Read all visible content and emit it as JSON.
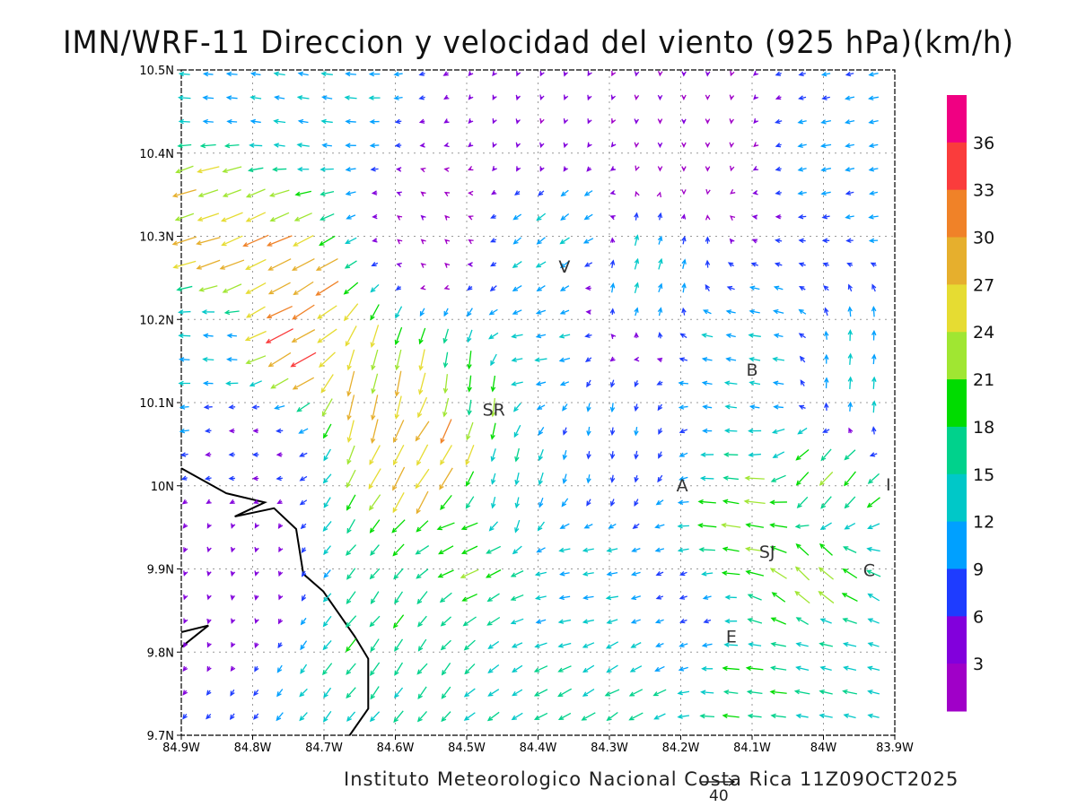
{
  "title": "IMN/WRF-11 Direccion y velocidad del viento (925 hPa)(km/h)",
  "credit": "Instituto Meteorologico Nacional Costa Rica 11Z09OCT2025",
  "reference_vector": {
    "label": "40",
    "speed": 40
  },
  "chart_data": {
    "type": "vector-field",
    "units": "km/h",
    "level": "925 hPa",
    "xlim": [
      -84.9,
      -83.9
    ],
    "ylim": [
      9.7,
      10.5
    ],
    "x_ticks": [
      {
        "v": -84.9,
        "label": "84.9W"
      },
      {
        "v": -84.8,
        "label": "84.8W"
      },
      {
        "v": -84.7,
        "label": "84.7W"
      },
      {
        "v": -84.6,
        "label": "84.6W"
      },
      {
        "v": -84.5,
        "label": "84.5W"
      },
      {
        "v": -84.4,
        "label": "84.4W"
      },
      {
        "v": -84.3,
        "label": "84.3W"
      },
      {
        "v": -84.2,
        "label": "84.2W"
      },
      {
        "v": -84.1,
        "label": "84.1W"
      },
      {
        "v": -84.0,
        "label": "84W"
      },
      {
        "v": -83.9,
        "label": "83.9W"
      }
    ],
    "y_ticks": [
      {
        "v": 9.7,
        "label": "9.7N"
      },
      {
        "v": 9.8,
        "label": "9.8N"
      },
      {
        "v": 9.9,
        "label": "9.9N"
      },
      {
        "v": 10.0,
        "label": "10N"
      },
      {
        "v": 10.1,
        "label": "10.1N"
      },
      {
        "v": 10.2,
        "label": "10.2N"
      },
      {
        "v": 10.3,
        "label": "10.3N"
      },
      {
        "v": 10.4,
        "label": "10.4N"
      },
      {
        "v": 10.5,
        "label": "10.5N"
      }
    ],
    "grid": true,
    "colorbar": {
      "placement": "right",
      "levels": [
        3,
        6,
        9,
        12,
        15,
        18,
        21,
        24,
        27,
        30,
        33,
        36
      ],
      "labels": [
        "3",
        "6",
        "9",
        "12",
        "15",
        "18",
        "21",
        "24",
        "27",
        "30",
        "33",
        "36"
      ],
      "colors": [
        "#a000c8",
        "#8200dc",
        "#1e3cff",
        "#00a0ff",
        "#00c8c8",
        "#00d28c",
        "#00dc00",
        "#a0e632",
        "#e6dc32",
        "#e6af2d",
        "#f08228",
        "#fa3c3c",
        "#f00082"
      ]
    },
    "grid_spacing_deg": [
      0.0333,
      0.0286
    ],
    "wind_anchors": [
      {
        "lon": -84.87,
        "lat": 10.47,
        "u": -12,
        "v": 1
      },
      {
        "lon": -84.75,
        "lat": 10.45,
        "u": -12,
        "v": 2
      },
      {
        "lon": -84.87,
        "lat": 10.33,
        "u": -24,
        "v": -8
      },
      {
        "lon": -84.8,
        "lat": 10.27,
        "u": -26,
        "v": -12
      },
      {
        "lon": -84.75,
        "lat": 10.18,
        "u": -28,
        "v": -16
      },
      {
        "lon": -84.85,
        "lat": 10.17,
        "u": -12,
        "v": 1
      },
      {
        "lon": -84.63,
        "lat": 10.12,
        "u": -6,
        "v": -26
      },
      {
        "lon": -84.55,
        "lat": 10.03,
        "u": -14,
        "v": -26
      },
      {
        "lon": -84.49,
        "lat": 10.12,
        "u": -2,
        "v": -20
      },
      {
        "lon": -84.55,
        "lat": 10.3,
        "u": -2,
        "v": 2
      },
      {
        "lon": -84.4,
        "lat": 10.42,
        "u": -1,
        "v": -3
      },
      {
        "lon": -84.2,
        "lat": 10.42,
        "u": 0,
        "v": -3
      },
      {
        "lon": -83.95,
        "lat": 10.4,
        "u": -10,
        "v": -2
      },
      {
        "lon": -84.37,
        "lat": 10.3,
        "u": -10,
        "v": -7
      },
      {
        "lon": -84.25,
        "lat": 10.26,
        "u": 3,
        "v": 11
      },
      {
        "lon": -84.12,
        "lat": 10.15,
        "u": -12,
        "v": 2
      },
      {
        "lon": -83.95,
        "lat": 10.12,
        "u": 1,
        "v": 12
      },
      {
        "lon": -84.3,
        "lat": 10.05,
        "u": -1,
        "v": -9
      },
      {
        "lon": -84.42,
        "lat": 10.15,
        "u": -12,
        "v": -2
      },
      {
        "lon": -84.45,
        "lat": 9.99,
        "u": -3,
        "v": -13
      },
      {
        "lon": -84.0,
        "lat": 10.0,
        "u": -13,
        "v": -15
      },
      {
        "lon": -84.1,
        "lat": 9.95,
        "u": -21,
        "v": 3
      },
      {
        "lon": -84.02,
        "lat": 9.89,
        "u": -16,
        "v": 15
      },
      {
        "lon": -84.5,
        "lat": 9.93,
        "u": -18,
        "v": -8
      },
      {
        "lon": -84.6,
        "lat": 9.83,
        "u": -10,
        "v": -13
      },
      {
        "lon": -84.82,
        "lat": 9.9,
        "u": -1,
        "v": -4
      },
      {
        "lon": -84.8,
        "lat": 10.05,
        "u": -6,
        "v": 0
      },
      {
        "lon": -84.3,
        "lat": 9.75,
        "u": -14,
        "v": -8
      },
      {
        "lon": -84.1,
        "lat": 9.75,
        "u": -17,
        "v": 2
      },
      {
        "lon": -84.0,
        "lat": 9.8,
        "u": -14,
        "v": 3
      },
      {
        "lon": -84.35,
        "lat": 9.88,
        "u": -12,
        "v": -2
      },
      {
        "lon": -84.2,
        "lat": 9.85,
        "u": -8,
        "v": -3
      }
    ],
    "coastline": [
      [
        [
          -84.9,
          10.021
        ],
        [
          -84.837,
          9.991
        ],
        [
          -84.783,
          9.98
        ],
        [
          -84.825,
          9.963
        ],
        [
          -84.77,
          9.973
        ],
        [
          -84.739,
          9.948
        ],
        [
          -84.729,
          9.894
        ],
        [
          -84.701,
          9.873
        ],
        [
          -84.657,
          9.819
        ],
        [
          -84.638,
          9.792
        ],
        [
          -84.638,
          9.732
        ],
        [
          -84.664,
          9.7
        ]
      ],
      [
        [
          -84.9,
          9.824
        ],
        [
          -84.862,
          9.832
        ],
        [
          -84.9,
          9.806
        ]
      ]
    ],
    "places": [
      {
        "label": "V",
        "lon": -84.363,
        "lat": 10.264
      },
      {
        "label": "B",
        "lon": -84.1,
        "lat": 10.14
      },
      {
        "label": "SR",
        "lon": -84.462,
        "lat": 10.092
      },
      {
        "label": "A",
        "lon": -84.198,
        "lat": 10.001
      },
      {
        "label": "SJ",
        "lon": -84.079,
        "lat": 9.921
      },
      {
        "label": "C",
        "lon": -83.936,
        "lat": 9.899
      },
      {
        "label": "E",
        "lon": -84.129,
        "lat": 9.819
      },
      {
        "label": "I",
        "lon": -83.909,
        "lat": 10.002
      }
    ]
  }
}
